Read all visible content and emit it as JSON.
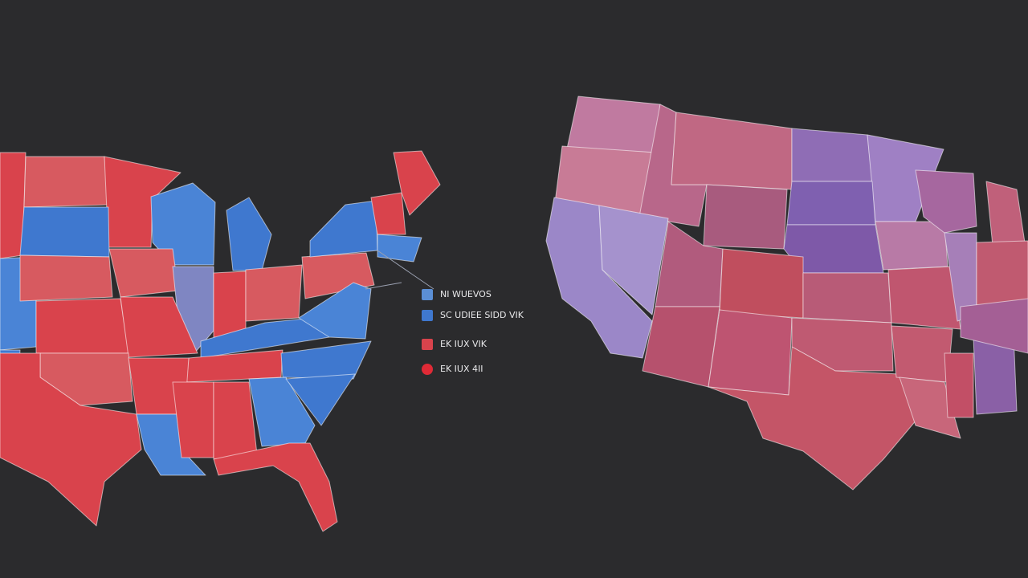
{
  "legend": {
    "items": [
      {
        "text": "NI WUEVOS",
        "color": "#5b8fd6",
        "marker": "square"
      },
      {
        "text": "SC UDIEE SIDD VIK",
        "color": "#3f78cf",
        "marker": "square"
      },
      {
        "text": "EK IUX VIK",
        "color": "#d9434c",
        "marker": "square"
      },
      {
        "text": "EK IUX 4II",
        "color": "#e02a36",
        "marker": "circle"
      }
    ]
  }
}
